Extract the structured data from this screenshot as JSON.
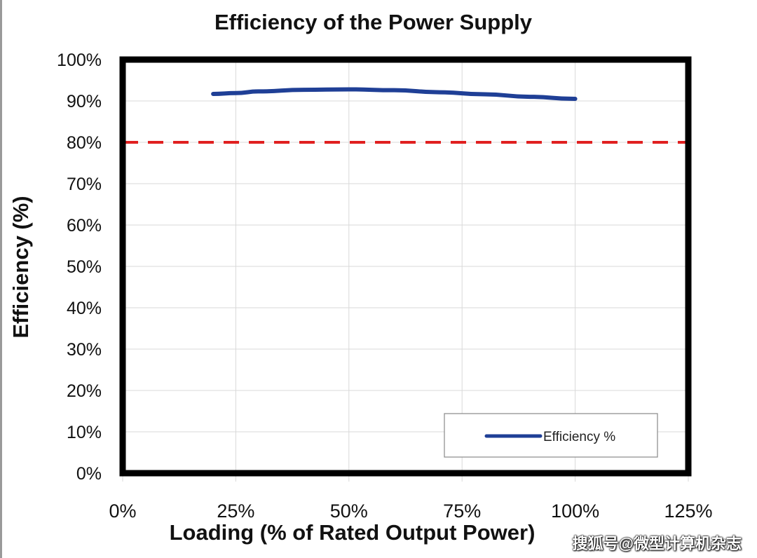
{
  "chart_data": {
    "type": "line",
    "title": "Efficiency of the Power Supply",
    "xlabel": "Loading (% of Rated Output Power)",
    "ylabel": "Efficiency (%)",
    "xlim": [
      0,
      125
    ],
    "ylim": [
      0,
      100
    ],
    "x_ticks": [
      "0%",
      "25%",
      "50%",
      "75%",
      "100%",
      "125%"
    ],
    "y_ticks": [
      "0%",
      "10%",
      "20%",
      "30%",
      "40%",
      "50%",
      "60%",
      "70%",
      "80%",
      "90%",
      "100%"
    ],
    "grid": true,
    "series": [
      {
        "name": "Efficiency %",
        "color": "#1f3f96",
        "x": [
          20,
          25,
          30,
          40,
          50,
          60,
          70,
          80,
          90,
          100
        ],
        "y": [
          91.7,
          91.9,
          92.3,
          92.7,
          92.8,
          92.6,
          92.1,
          91.6,
          91.0,
          90.5
        ]
      }
    ],
    "reference_line": {
      "y": 80,
      "color": "#e02020",
      "style": "dashed"
    },
    "legend_position": "bottom-right"
  },
  "watermark": "搜狐号@微型计算机杂志"
}
